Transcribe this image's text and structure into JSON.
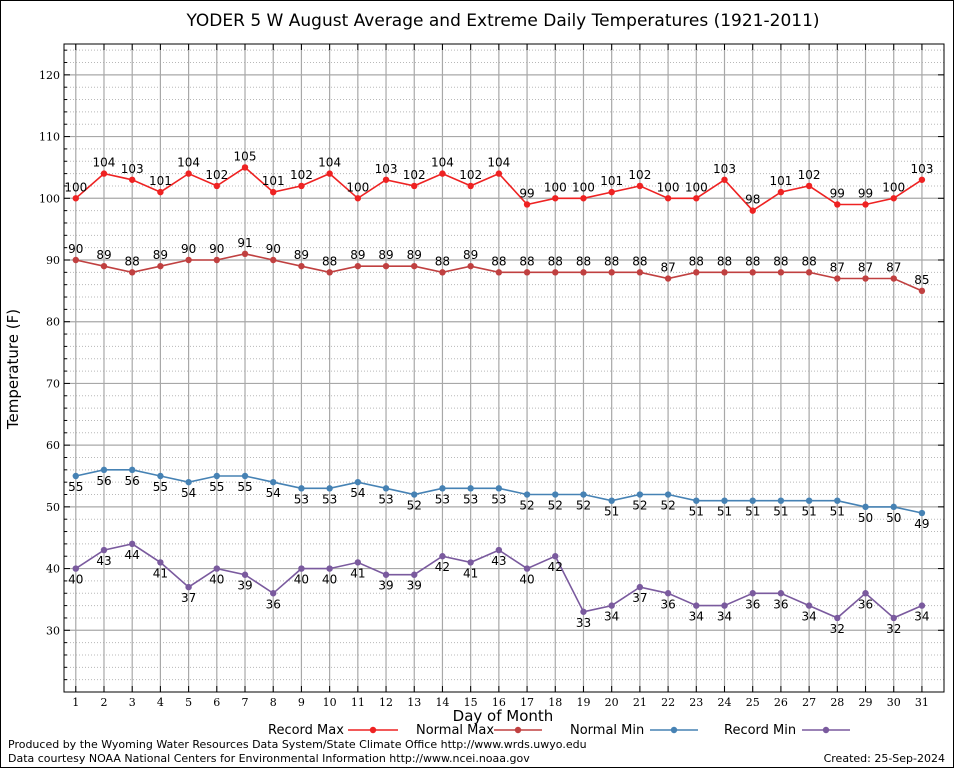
{
  "chart_data": {
    "type": "line",
    "title": "YODER 5 W August Average and Extreme Daily Temperatures (1921-2011)",
    "xlabel": "Day of Month",
    "ylabel": "Temperature (F)",
    "ylim": [
      20,
      125
    ],
    "yticks": [
      30,
      40,
      50,
      60,
      70,
      80,
      90,
      100,
      110,
      120
    ],
    "grid": true,
    "legend_position": "bottom",
    "x": [
      1,
      2,
      3,
      4,
      5,
      6,
      7,
      8,
      9,
      10,
      11,
      12,
      13,
      14,
      15,
      16,
      17,
      18,
      19,
      20,
      21,
      22,
      23,
      24,
      25,
      26,
      27,
      28,
      29,
      30,
      31
    ],
    "series": [
      {
        "name": "Record Max",
        "color": "#ee2222",
        "label_pos": "above",
        "values": [
          100,
          104,
          103,
          101,
          104,
          102,
          105,
          101,
          102,
          104,
          100,
          103,
          102,
          104,
          102,
          104,
          99,
          100,
          100,
          101,
          102,
          100,
          100,
          103,
          98,
          101,
          102,
          99,
          99,
          100,
          103
        ]
      },
      {
        "name": "Normal Max",
        "color": "#c04040",
        "label_pos": "above",
        "values": [
          90,
          89,
          88,
          89,
          90,
          90,
          91,
          90,
          89,
          88,
          89,
          89,
          89,
          88,
          89,
          88,
          88,
          88,
          88,
          88,
          88,
          87,
          88,
          88,
          88,
          88,
          88,
          87,
          87,
          87,
          85
        ]
      },
      {
        "name": "Normal Min",
        "color": "#4682b4",
        "label_pos": "below",
        "values": [
          55,
          56,
          56,
          55,
          54,
          55,
          55,
          54,
          53,
          53,
          54,
          53,
          52,
          53,
          53,
          53,
          52,
          52,
          52,
          51,
          52,
          52,
          51,
          51,
          51,
          51,
          51,
          51,
          50,
          50,
          49
        ]
      },
      {
        "name": "Record Min",
        "color": "#7a5a9e",
        "label_pos": "below",
        "values": [
          40,
          43,
          44,
          41,
          37,
          40,
          39,
          36,
          40,
          40,
          41,
          39,
          39,
          42,
          41,
          43,
          40,
          42,
          33,
          34,
          37,
          36,
          34,
          34,
          36,
          36,
          34,
          32,
          36,
          32,
          34
        ]
      }
    ]
  },
  "footer": {
    "line1": "Produced by the Wyoming Water Resources Data System/State Climate Office http://www.wrds.uwyo.edu",
    "line2": "Data courtesy NOAA National Centers for Environmental Information http://www.ncei.noaa.gov",
    "created": "Created:  25-Sep-2024"
  }
}
